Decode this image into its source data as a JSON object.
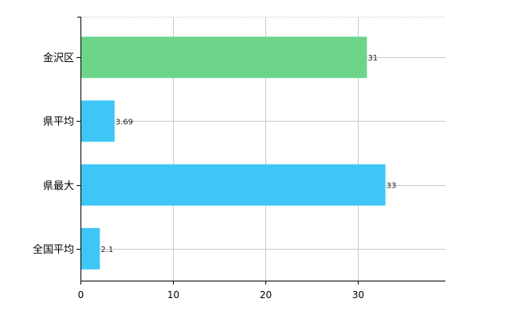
{
  "chart_data": {
    "type": "bar",
    "orientation": "horizontal",
    "title": "",
    "xlabel": "",
    "ylabel": "",
    "categories": [
      "金沢区",
      "県平均",
      "県最大",
      "全国平均"
    ],
    "values": [
      31,
      3.69,
      33,
      2.1
    ],
    "data_labels": [
      "31",
      "3.69",
      "33",
      "2.1"
    ],
    "bar_colors": [
      "#6dd58a",
      "#3ec6f6",
      "#3ec6f6",
      "#3ec6f6"
    ],
    "xlim": [
      0,
      39.5
    ],
    "x_ticks": [
      0,
      10,
      20,
      30
    ],
    "x_tick_labels": [
      "0",
      "10",
      "20",
      "30"
    ],
    "grid": true,
    "legend": "none"
  }
}
